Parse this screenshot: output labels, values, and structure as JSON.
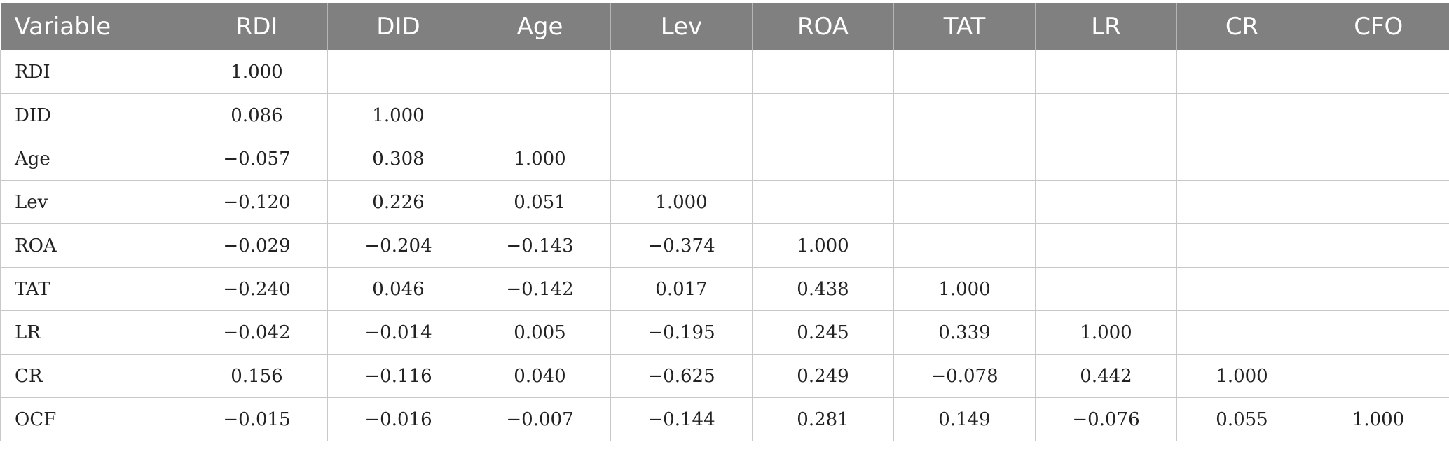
{
  "table": {
    "headers": [
      "Variable",
      "RDI",
      "DID",
      "Age",
      "Lev",
      "ROA",
      "TAT",
      "LR",
      "CR",
      "CFO"
    ],
    "rows": [
      [
        "RDI",
        "1.000",
        "",
        "",
        "",
        "",
        "",
        "",
        "",
        ""
      ],
      [
        "DID",
        "0.086",
        "1.000",
        "",
        "",
        "",
        "",
        "",
        "",
        ""
      ],
      [
        "Age",
        "−0.057",
        "0.308",
        "1.000",
        "",
        "",
        "",
        "",
        "",
        ""
      ],
      [
        "Lev",
        "−0.120",
        "0.226",
        "0.051",
        "1.000",
        "",
        "",
        "",
        "",
        ""
      ],
      [
        "ROA",
        "−0.029",
        "−0.204",
        "−0.143",
        "−0.374",
        "1.000",
        "",
        "",
        "",
        ""
      ],
      [
        "TAT",
        "−0.240",
        "0.046",
        "−0.142",
        "0.017",
        "0.438",
        "1.000",
        "",
        "",
        ""
      ],
      [
        "LR",
        "−0.042",
        "−0.014",
        "0.005",
        "−0.195",
        "0.245",
        "0.339",
        "1.000",
        "",
        ""
      ],
      [
        "CR",
        "0.156",
        "−0.116",
        "0.040",
        "−0.625",
        "0.249",
        "−0.078",
        "0.442",
        "1.000",
        ""
      ],
      [
        "OCF",
        "−0.015",
        "−0.016",
        "−0.007",
        "−0.144",
        "0.281",
        "0.149",
        "−0.076",
        "0.055",
        "1.000"
      ]
    ]
  },
  "colors": {
    "header_bg": "#808080",
    "header_text": "#ffffff",
    "grid": "#c8c8c8"
  }
}
